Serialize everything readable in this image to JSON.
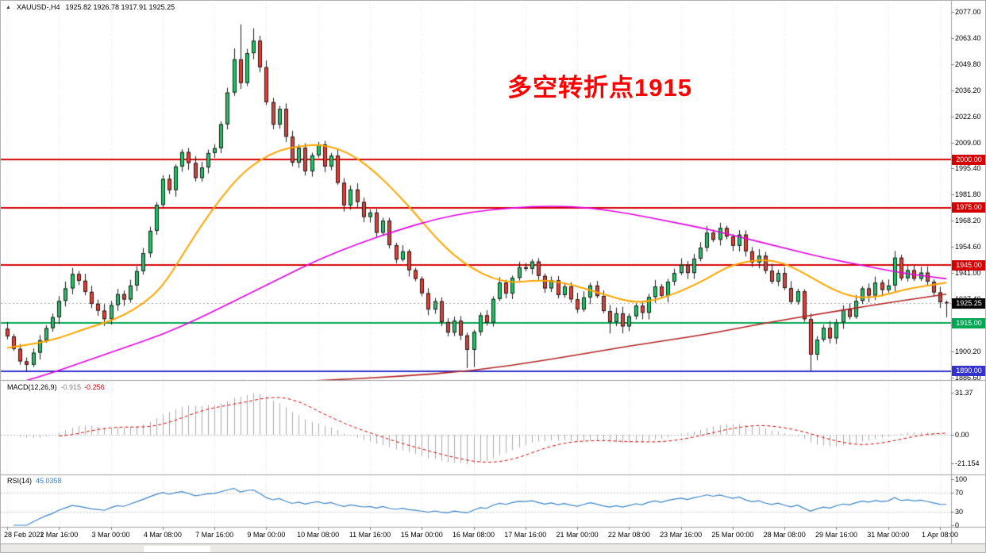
{
  "header": {
    "symbol_period": "XAUUSD-,H4",
    "ohlc": "1925.82 1926.78 1917.91 1925.25"
  },
  "annotation": {
    "text": "多空转折点1915",
    "color": "#FF0000"
  },
  "colors": {
    "background": "#FFFFFF",
    "candle_up": "#1CC464",
    "candle_down": "#E23E36",
    "candle_outline": "#1A1A1A",
    "grid": "#E2E2E2",
    "separator": "#A0A0A0",
    "scale_text": "#000000",
    "ma_fast": "#FFA500",
    "ma_mid": "#E100E1",
    "ma_slow": "#B22222",
    "macd_histogram": "#ABABAB",
    "macd_signal": "#D00000",
    "rsi_line": "#3B82C4",
    "current_price_badge": "#000000",
    "bid_line": "#AAAAAA"
  },
  "chart_data": {
    "type": "candlestick",
    "symbol": "XAUUSD-",
    "timeframe": "H4",
    "title": "XAUUSD-,H4 1925.82 1926.78 1917.91 1925.25",
    "y_axis": {
      "top_price": 2077.0,
      "bottom_price": 1886.6,
      "ticks": [
        "2077.00",
        "2063.40",
        "2049.80",
        "2036.20",
        "2022.60",
        "2009.00",
        "1995.40",
        "1981.80",
        "1968.20",
        "1954.60",
        "1941.00",
        "1927.40",
        "1913.80",
        "1900.20",
        "1886.60"
      ]
    },
    "x_labels": [
      {
        "index": 0,
        "label": "28 Feb 2022"
      },
      {
        "index": 8,
        "label": "1 Mar 16:00"
      },
      {
        "index": 16,
        "label": "3 Mar 00:00"
      },
      {
        "index": 24,
        "label": "4 Mar 08:00"
      },
      {
        "index": 32,
        "label": "7 Mar 16:00"
      },
      {
        "index": 40,
        "label": "9 Mar 00:00"
      },
      {
        "index": 48,
        "label": "10 Mar 08:00"
      },
      {
        "index": 56,
        "label": "11 Mar 16:00"
      },
      {
        "index": 64,
        "label": "15 Mar 00:00"
      },
      {
        "index": 72,
        "label": "16 Mar 08:00"
      },
      {
        "index": 80,
        "label": "17 Mar 16:00"
      },
      {
        "index": 88,
        "label": "21 Mar 00:00"
      },
      {
        "index": 96,
        "label": "22 Mar 08:00"
      },
      {
        "index": 104,
        "label": "23 Mar 16:00"
      },
      {
        "index": 112,
        "label": "25 Mar 00:00"
      },
      {
        "index": 120,
        "label": "28 Mar 08:00"
      },
      {
        "index": 128,
        "label": "29 Mar 16:00"
      },
      {
        "index": 136,
        "label": "31 Mar 00:00"
      },
      {
        "index": 144,
        "label": "1 Apr 08:00"
      }
    ],
    "closes": [
      1908.0,
      1901.5,
      1895.0,
      1893.2,
      1899.5,
      1906.0,
      1912.3,
      1918.0,
      1926.5,
      1933.0,
      1940.5,
      1937.0,
      1931.2,
      1925.0,
      1921.4,
      1917.0,
      1924.3,
      1930.0,
      1927.2,
      1934.5,
      1942.0,
      1951.3,
      1963.0,
      1976.5,
      1990.0,
      1984.2,
      1996.5,
      2004.0,
      1998.3,
      1990.5,
      1996.0,
      2003.5,
      2006.0,
      2018.5,
      2035.0,
      2052.3,
      2040.0,
      2055.5,
      2062.0,
      2048.2,
      2030.0,
      2018.3,
      2026.5,
      2012.0,
      1998.5,
      2006.2,
      1994.0,
      2002.3,
      2008.0,
      1996.5,
      2002.2,
      1988.0,
      1976.3,
      1984.5,
      1978.0,
      1970.2,
      1972.5,
      1962.0,
      1968.3,
      1955.5,
      1948.0,
      1952.3,
      1942.5,
      1938.0,
      1930.5,
      1922.0,
      1926.3,
      1915.5,
      1910.0,
      1916.2,
      1908.5,
      1901.0,
      1910.3,
      1919.0,
      1915.2,
      1927.5,
      1936.0,
      1930.3,
      1938.5,
      1944.0,
      1943.2,
      1947.0,
      1939.5,
      1933.0,
      1937.2,
      1929.5,
      1934.0,
      1927.3,
      1922.0,
      1928.3,
      1934.5,
      1929.0,
      1921.2,
      1915.5,
      1920.0,
      1913.2,
      1918.5,
      1924.0,
      1920.3,
      1928.5,
      1934.0,
      1929.2,
      1936.5,
      1941.0,
      1945.3,
      1941.0,
      1948.5,
      1954.2,
      1962.0,
      1958.3,
      1964.5,
      1960.0,
      1955.2,
      1961.0,
      1952.3,
      1946.5,
      1950.0,
      1942.2,
      1936.5,
      1941.0,
      1933.2,
      1926.0,
      1931.5,
      1917.0,
      1898.5,
      1906.3,
      1912.5,
      1907.0,
      1915.3,
      1922.0,
      1918.2,
      1926.5,
      1933.0,
      1929.3,
      1936.0,
      1932.2,
      1934.5,
      1949.0,
      1938.3,
      1942.5,
      1938.0,
      1941.2,
      1936.5,
      1930.9,
      1925.8,
      1925.25
    ],
    "first_open": 1912.0,
    "last_candle_ohlc": [
      1925.82,
      1926.78,
      1917.91,
      1925.25
    ],
    "wick_overrides": {
      "3": {
        "l": 1889.5
      },
      "35": {
        "h": 2058.0
      },
      "36": {
        "h": 2070.5
      },
      "38": {
        "h": 2068.5
      },
      "71": {
        "l": 1891.5
      },
      "72": {
        "l": 1892.0
      },
      "93": {
        "l": 1909.5
      },
      "124": {
        "l": 1890.2
      },
      "137": {
        "h": 1952.5
      }
    },
    "horizontal_lines": [
      {
        "price": 2000.0,
        "label": "2000.00",
        "color": "#D40000"
      },
      {
        "price": 1975.0,
        "label": "1975.00",
        "color": "#D40000"
      },
      {
        "price": 1945.0,
        "label": "1945.00",
        "color": "#D40000"
      },
      {
        "price": 1915.0,
        "label": "1915.00",
        "color": "#00A651"
      },
      {
        "price": 1890.0,
        "label": "1890.00",
        "color": "#3333CC"
      }
    ],
    "current_price": {
      "value": 1925.25,
      "label": "1925.25"
    },
    "moving_averages": [
      {
        "name": "ma-fast",
        "color": "#FFA500",
        "width": 2,
        "points": [
          [
            0,
            1902
          ],
          [
            4,
            1904
          ],
          [
            8,
            1907
          ],
          [
            12,
            1912
          ],
          [
            15,
            1915
          ],
          [
            18,
            1919
          ],
          [
            21,
            1925
          ],
          [
            24,
            1934
          ],
          [
            27,
            1950
          ],
          [
            30,
            1966
          ],
          [
            33,
            1980
          ],
          [
            36,
            1992
          ],
          [
            39,
            2000
          ],
          [
            42,
            2005
          ],
          [
            45,
            2007
          ],
          [
            48,
            2008
          ],
          [
            51,
            2006
          ],
          [
            54,
            2001
          ],
          [
            57,
            1993
          ],
          [
            60,
            1983
          ],
          [
            63,
            1972
          ],
          [
            66,
            1960
          ],
          [
            69,
            1950
          ],
          [
            72,
            1943
          ],
          [
            75,
            1938
          ],
          [
            78,
            1936
          ],
          [
            81,
            1937
          ],
          [
            84,
            1937
          ],
          [
            87,
            1935
          ],
          [
            90,
            1932
          ],
          [
            93,
            1929
          ],
          [
            96,
            1926
          ],
          [
            99,
            1926
          ],
          [
            102,
            1929
          ],
          [
            105,
            1933
          ],
          [
            108,
            1938
          ],
          [
            111,
            1944
          ],
          [
            114,
            1947
          ],
          [
            117,
            1948
          ],
          [
            120,
            1946
          ],
          [
            123,
            1941
          ],
          [
            126,
            1935
          ],
          [
            129,
            1930
          ],
          [
            132,
            1928
          ],
          [
            135,
            1929
          ],
          [
            138,
            1932
          ],
          [
            141,
            1934
          ],
          [
            145,
            1936
          ]
        ]
      },
      {
        "name": "ma-mid",
        "color": "#E100E1",
        "width": 1.6,
        "points": [
          [
            0,
            1882
          ],
          [
            6,
            1888
          ],
          [
            12,
            1895
          ],
          [
            18,
            1902
          ],
          [
            24,
            1909
          ],
          [
            30,
            1918
          ],
          [
            36,
            1928
          ],
          [
            42,
            1938
          ],
          [
            48,
            1948
          ],
          [
            54,
            1956
          ],
          [
            60,
            1963
          ],
          [
            66,
            1969
          ],
          [
            72,
            1973
          ],
          [
            78,
            1975
          ],
          [
            84,
            1976
          ],
          [
            90,
            1975
          ],
          [
            96,
            1972
          ],
          [
            102,
            1968
          ],
          [
            108,
            1964
          ],
          [
            114,
            1959
          ],
          [
            120,
            1954
          ],
          [
            126,
            1949
          ],
          [
            132,
            1945
          ],
          [
            138,
            1941
          ],
          [
            145,
            1938
          ]
        ]
      },
      {
        "name": "ma-slow",
        "color": "#B22222",
        "width": 1.6,
        "points": [
          [
            30,
            1882
          ],
          [
            48,
            1885
          ],
          [
            60,
            1887
          ],
          [
            72,
            1890
          ],
          [
            84,
            1896
          ],
          [
            96,
            1903
          ],
          [
            108,
            1909
          ],
          [
            117,
            1915
          ],
          [
            126,
            1920
          ],
          [
            135,
            1925
          ],
          [
            145,
            1930
          ]
        ]
      }
    ],
    "indicators": [
      {
        "name": "MACD",
        "label": "MACD(12,26,9)",
        "params": [
          12,
          26,
          9
        ],
        "values": [
          "-0.915",
          "-0.256"
        ],
        "scale_ticks": [
          {
            "label": "31.37",
            "value": 31.37
          },
          {
            "label": "0.00",
            "value": 0
          },
          {
            "label": "-21.154",
            "value": -21.154
          }
        ]
      },
      {
        "name": "RSI",
        "label": "RSI(14)",
        "period": 14,
        "value": "45.0358",
        "levels": [
          70,
          30
        ],
        "scale_ticks": [
          {
            "label": "100",
            "value": 100
          },
          {
            "label": "70",
            "value": 70
          },
          {
            "label": "30",
            "value": 30
          },
          {
            "label": "0",
            "value": 0
          }
        ]
      }
    ]
  }
}
